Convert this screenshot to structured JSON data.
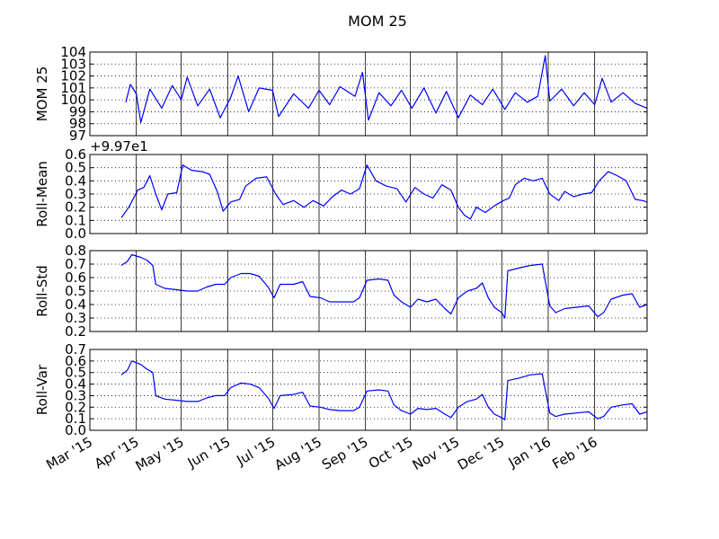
{
  "title": "MOM 25",
  "x_tick_labels": [
    "Mar '15",
    "Apr '15",
    "May '15",
    "Jun '15",
    "Jul '15",
    "Aug '15",
    "Sep '15",
    "Oct '15",
    "Nov '15",
    "Dec '15",
    "Jan '16",
    "Feb '16"
  ],
  "chart_data": [
    {
      "type": "line",
      "ylabel": "MOM 25",
      "ylim": [
        97,
        104
      ],
      "yticks": [
        "97",
        "98",
        "99",
        "100",
        "101",
        "102",
        "103",
        "104"
      ],
      "offset_text": "",
      "color": "#0000ff",
      "x_range": [
        "2015-03-01",
        "2016-03-07"
      ],
      "points": [
        [
          "2015-03-25",
          99.8
        ],
        [
          "2015-03-28",
          101.3
        ],
        [
          "2015-04-01",
          100.5
        ],
        [
          "2015-04-04",
          98.1
        ],
        [
          "2015-04-10",
          100.9
        ],
        [
          "2015-04-18",
          99.3
        ],
        [
          "2015-04-25",
          101.2
        ],
        [
          "2015-05-01",
          100.0
        ],
        [
          "2015-05-05",
          101.9
        ],
        [
          "2015-05-12",
          99.5
        ],
        [
          "2015-05-20",
          100.9
        ],
        [
          "2015-05-27",
          98.5
        ],
        [
          "2015-06-03",
          100.2
        ],
        [
          "2015-06-08",
          102.0
        ],
        [
          "2015-06-15",
          99.0
        ],
        [
          "2015-06-22",
          101.0
        ],
        [
          "2015-07-01",
          100.8
        ],
        [
          "2015-07-05",
          98.6
        ],
        [
          "2015-07-15",
          100.5
        ],
        [
          "2015-07-25",
          99.3
        ],
        [
          "2015-08-01",
          100.8
        ],
        [
          "2015-08-08",
          99.6
        ],
        [
          "2015-08-15",
          101.1
        ],
        [
          "2015-08-25",
          100.3
        ],
        [
          "2015-08-30",
          102.3
        ],
        [
          "2015-09-03",
          98.3
        ],
        [
          "2015-09-10",
          100.6
        ],
        [
          "2015-09-18",
          99.5
        ],
        [
          "2015-09-25",
          100.8
        ],
        [
          "2015-10-02",
          99.3
        ],
        [
          "2015-10-10",
          101.0
        ],
        [
          "2015-10-18",
          98.9
        ],
        [
          "2015-10-25",
          100.7
        ],
        [
          "2015-11-02",
          98.5
        ],
        [
          "2015-11-10",
          100.4
        ],
        [
          "2015-11-18",
          99.6
        ],
        [
          "2015-11-25",
          100.9
        ],
        [
          "2015-12-03",
          99.2
        ],
        [
          "2015-12-10",
          100.6
        ],
        [
          "2015-12-18",
          99.8
        ],
        [
          "2015-12-25",
          100.3
        ],
        [
          "2015-12-30",
          103.7
        ],
        [
          "2016-01-02",
          99.9
        ],
        [
          "2016-01-10",
          100.9
        ],
        [
          "2016-01-18",
          99.5
        ],
        [
          "2016-01-25",
          100.6
        ],
        [
          "2016-02-01",
          99.6
        ],
        [
          "2016-02-06",
          101.8
        ],
        [
          "2016-02-12",
          99.8
        ],
        [
          "2016-02-20",
          100.6
        ],
        [
          "2016-02-28",
          99.7
        ],
        [
          "2016-03-07",
          99.3
        ]
      ]
    },
    {
      "type": "line",
      "ylabel": "Roll-Mean",
      "ylim": [
        0.0,
        0.6
      ],
      "yticks": [
        "0.0",
        "0.1",
        "0.2",
        "0.3",
        "0.4",
        "0.5",
        "0.6"
      ],
      "offset_text": "+9.97e1",
      "color": "#0000ff",
      "x_range": [
        "2015-03-01",
        "2016-03-07"
      ],
      "points": [
        [
          "2015-03-22",
          0.12
        ],
        [
          "2015-03-27",
          0.2
        ],
        [
          "2015-04-02",
          0.33
        ],
        [
          "2015-04-06",
          0.35
        ],
        [
          "2015-04-10",
          0.44
        ],
        [
          "2015-04-14",
          0.3
        ],
        [
          "2015-04-18",
          0.18
        ],
        [
          "2015-04-22",
          0.3
        ],
        [
          "2015-04-28",
          0.31
        ],
        [
          "2015-05-02",
          0.52
        ],
        [
          "2015-05-08",
          0.48
        ],
        [
          "2015-05-15",
          0.47
        ],
        [
          "2015-05-20",
          0.45
        ],
        [
          "2015-05-25",
          0.32
        ],
        [
          "2015-05-29",
          0.17
        ],
        [
          "2015-06-03",
          0.24
        ],
        [
          "2015-06-09",
          0.26
        ],
        [
          "2015-06-13",
          0.36
        ],
        [
          "2015-06-20",
          0.42
        ],
        [
          "2015-06-27",
          0.43
        ],
        [
          "2015-07-03",
          0.3
        ],
        [
          "2015-07-08",
          0.22
        ],
        [
          "2015-07-15",
          0.25
        ],
        [
          "2015-07-22",
          0.2
        ],
        [
          "2015-07-28",
          0.25
        ],
        [
          "2015-08-04",
          0.21
        ],
        [
          "2015-08-10",
          0.28
        ],
        [
          "2015-08-16",
          0.33
        ],
        [
          "2015-08-22",
          0.3
        ],
        [
          "2015-08-28",
          0.34
        ],
        [
          "2015-09-02",
          0.52
        ],
        [
          "2015-09-08",
          0.4
        ],
        [
          "2015-09-15",
          0.36
        ],
        [
          "2015-09-22",
          0.34
        ],
        [
          "2015-09-28",
          0.24
        ],
        [
          "2015-10-04",
          0.35
        ],
        [
          "2015-10-10",
          0.3
        ],
        [
          "2015-10-16",
          0.27
        ],
        [
          "2015-10-22",
          0.37
        ],
        [
          "2015-10-28",
          0.33
        ],
        [
          "2015-11-02",
          0.2
        ],
        [
          "2015-11-06",
          0.14
        ],
        [
          "2015-11-10",
          0.11
        ],
        [
          "2015-11-14",
          0.2
        ],
        [
          "2015-11-20",
          0.16
        ],
        [
          "2015-11-26",
          0.21
        ],
        [
          "2015-12-02",
          0.25
        ],
        [
          "2015-12-06",
          0.27
        ],
        [
          "2015-12-10",
          0.37
        ],
        [
          "2015-12-16",
          0.42
        ],
        [
          "2015-12-22",
          0.4
        ],
        [
          "2015-12-28",
          0.42
        ],
        [
          "2016-01-02",
          0.3
        ],
        [
          "2016-01-08",
          0.25
        ],
        [
          "2016-01-12",
          0.32
        ],
        [
          "2016-01-18",
          0.28
        ],
        [
          "2016-01-24",
          0.3
        ],
        [
          "2016-01-30",
          0.31
        ],
        [
          "2016-02-04",
          0.4
        ],
        [
          "2016-02-10",
          0.47
        ],
        [
          "2016-02-16",
          0.44
        ],
        [
          "2016-02-22",
          0.4
        ],
        [
          "2016-02-28",
          0.26
        ],
        [
          "2016-03-04",
          0.25
        ],
        [
          "2016-03-07",
          0.24
        ]
      ]
    },
    {
      "type": "line",
      "ylabel": "Roll-Std",
      "ylim": [
        0.2,
        0.8
      ],
      "yticks": [
        "0.2",
        "0.3",
        "0.4",
        "0.5",
        "0.6",
        "0.7",
        "0.8"
      ],
      "offset_text": "",
      "color": "#0000ff",
      "x_range": [
        "2015-03-01",
        "2016-03-07"
      ],
      "points": [
        [
          "2015-03-22",
          0.69
        ],
        [
          "2015-03-26",
          0.72
        ],
        [
          "2015-03-29",
          0.77
        ],
        [
          "2015-04-04",
          0.75
        ],
        [
          "2015-04-08",
          0.73
        ],
        [
          "2015-04-12",
          0.69
        ],
        [
          "2015-04-14",
          0.55
        ],
        [
          "2015-04-20",
          0.52
        ],
        [
          "2015-04-28",
          0.51
        ],
        [
          "2015-05-05",
          0.5
        ],
        [
          "2015-05-12",
          0.5
        ],
        [
          "2015-05-18",
          0.53
        ],
        [
          "2015-05-24",
          0.55
        ],
        [
          "2015-05-30",
          0.55
        ],
        [
          "2015-06-03",
          0.6
        ],
        [
          "2015-06-10",
          0.63
        ],
        [
          "2015-06-16",
          0.63
        ],
        [
          "2015-06-22",
          0.61
        ],
        [
          "2015-06-28",
          0.53
        ],
        [
          "2015-07-02",
          0.45
        ],
        [
          "2015-07-06",
          0.55
        ],
        [
          "2015-07-15",
          0.55
        ],
        [
          "2015-07-21",
          0.57
        ],
        [
          "2015-07-26",
          0.46
        ],
        [
          "2015-08-02",
          0.45
        ],
        [
          "2015-08-08",
          0.42
        ],
        [
          "2015-08-15",
          0.42
        ],
        [
          "2015-08-24",
          0.42
        ],
        [
          "2015-08-28",
          0.45
        ],
        [
          "2015-09-02",
          0.58
        ],
        [
          "2015-09-10",
          0.59
        ],
        [
          "2015-09-16",
          0.58
        ],
        [
          "2015-09-20",
          0.47
        ],
        [
          "2015-09-25",
          0.42
        ],
        [
          "2015-10-01",
          0.38
        ],
        [
          "2015-10-06",
          0.44
        ],
        [
          "2015-10-12",
          0.42
        ],
        [
          "2015-10-18",
          0.44
        ],
        [
          "2015-10-24",
          0.37
        ],
        [
          "2015-10-28",
          0.33
        ],
        [
          "2015-11-02",
          0.45
        ],
        [
          "2015-11-08",
          0.5
        ],
        [
          "2015-11-14",
          0.52
        ],
        [
          "2015-11-18",
          0.56
        ],
        [
          "2015-11-22",
          0.45
        ],
        [
          "2015-11-26",
          0.38
        ],
        [
          "2015-12-01",
          0.34
        ],
        [
          "2015-12-03",
          0.3
        ],
        [
          "2015-12-05",
          0.65
        ],
        [
          "2015-12-12",
          0.67
        ],
        [
          "2015-12-20",
          0.69
        ],
        [
          "2015-12-28",
          0.7
        ],
        [
          "2016-01-02",
          0.39
        ],
        [
          "2016-01-06",
          0.34
        ],
        [
          "2016-01-12",
          0.37
        ],
        [
          "2016-01-20",
          0.38
        ],
        [
          "2016-01-28",
          0.39
        ],
        [
          "2016-02-03",
          0.31
        ],
        [
          "2016-02-07",
          0.34
        ],
        [
          "2016-02-12",
          0.44
        ],
        [
          "2016-02-20",
          0.47
        ],
        [
          "2016-02-26",
          0.48
        ],
        [
          "2016-03-02",
          0.38
        ],
        [
          "2016-03-07",
          0.4
        ]
      ]
    },
    {
      "type": "line",
      "ylabel": "Roll-Var",
      "ylim": [
        0.0,
        0.7
      ],
      "yticks": [
        "0.0",
        "0.1",
        "0.2",
        "0.3",
        "0.4",
        "0.5",
        "0.6",
        "0.7"
      ],
      "offset_text": "",
      "color": "#0000ff",
      "x_range": [
        "2015-03-01",
        "2016-03-07"
      ],
      "points": [
        [
          "2015-03-22",
          0.48
        ],
        [
          "2015-03-26",
          0.52
        ],
        [
          "2015-03-29",
          0.6
        ],
        [
          "2015-04-04",
          0.57
        ],
        [
          "2015-04-08",
          0.53
        ],
        [
          "2015-04-12",
          0.5
        ],
        [
          "2015-04-14",
          0.3
        ],
        [
          "2015-04-20",
          0.27
        ],
        [
          "2015-04-28",
          0.26
        ],
        [
          "2015-05-05",
          0.25
        ],
        [
          "2015-05-12",
          0.25
        ],
        [
          "2015-05-18",
          0.28
        ],
        [
          "2015-05-24",
          0.3
        ],
        [
          "2015-05-30",
          0.3
        ],
        [
          "2015-06-03",
          0.37
        ],
        [
          "2015-06-10",
          0.41
        ],
        [
          "2015-06-16",
          0.4
        ],
        [
          "2015-06-22",
          0.37
        ],
        [
          "2015-06-28",
          0.28
        ],
        [
          "2015-07-02",
          0.19
        ],
        [
          "2015-07-06",
          0.3
        ],
        [
          "2015-07-15",
          0.31
        ],
        [
          "2015-07-21",
          0.33
        ],
        [
          "2015-07-26",
          0.21
        ],
        [
          "2015-08-02",
          0.2
        ],
        [
          "2015-08-08",
          0.18
        ],
        [
          "2015-08-15",
          0.17
        ],
        [
          "2015-08-24",
          0.17
        ],
        [
          "2015-08-28",
          0.2
        ],
        [
          "2015-09-02",
          0.34
        ],
        [
          "2015-09-10",
          0.35
        ],
        [
          "2015-09-16",
          0.34
        ],
        [
          "2015-09-20",
          0.22
        ],
        [
          "2015-09-25",
          0.17
        ],
        [
          "2015-10-01",
          0.14
        ],
        [
          "2015-10-06",
          0.19
        ],
        [
          "2015-10-12",
          0.18
        ],
        [
          "2015-10-18",
          0.19
        ],
        [
          "2015-10-24",
          0.14
        ],
        [
          "2015-10-28",
          0.11
        ],
        [
          "2015-11-02",
          0.2
        ],
        [
          "2015-11-08",
          0.25
        ],
        [
          "2015-11-14",
          0.27
        ],
        [
          "2015-11-18",
          0.31
        ],
        [
          "2015-11-22",
          0.2
        ],
        [
          "2015-11-26",
          0.14
        ],
        [
          "2015-12-01",
          0.11
        ],
        [
          "2015-12-03",
          0.09
        ],
        [
          "2015-12-05",
          0.43
        ],
        [
          "2015-12-12",
          0.45
        ],
        [
          "2015-12-20",
          0.48
        ],
        [
          "2015-12-28",
          0.49
        ],
        [
          "2016-01-02",
          0.15
        ],
        [
          "2016-01-06",
          0.12
        ],
        [
          "2016-01-12",
          0.14
        ],
        [
          "2016-01-20",
          0.15
        ],
        [
          "2016-01-28",
          0.16
        ],
        [
          "2016-02-03",
          0.1
        ],
        [
          "2016-02-07",
          0.12
        ],
        [
          "2016-02-12",
          0.2
        ],
        [
          "2016-02-20",
          0.22
        ],
        [
          "2016-02-26",
          0.23
        ],
        [
          "2016-03-02",
          0.14
        ],
        [
          "2016-03-07",
          0.16
        ]
      ]
    }
  ]
}
